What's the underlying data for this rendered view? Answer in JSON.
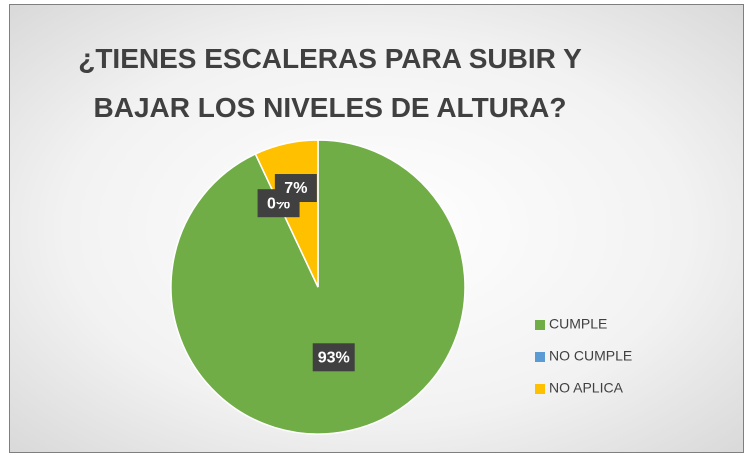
{
  "chart_data": {
    "type": "pie",
    "title": "¿TIENES ESCALERAS PARA SUBIR Y BAJAR LOS NIVELES DE ALTURA?",
    "categories": [
      "CUMPLE",
      "NO CUMPLE",
      "NO APLICA"
    ],
    "values": [
      93,
      0,
      7
    ],
    "value_labels": [
      "93%",
      "0%",
      "7%"
    ],
    "colors": [
      "#70ad47",
      "#5b9bd5",
      "#ffc000"
    ],
    "legend": "right"
  }
}
